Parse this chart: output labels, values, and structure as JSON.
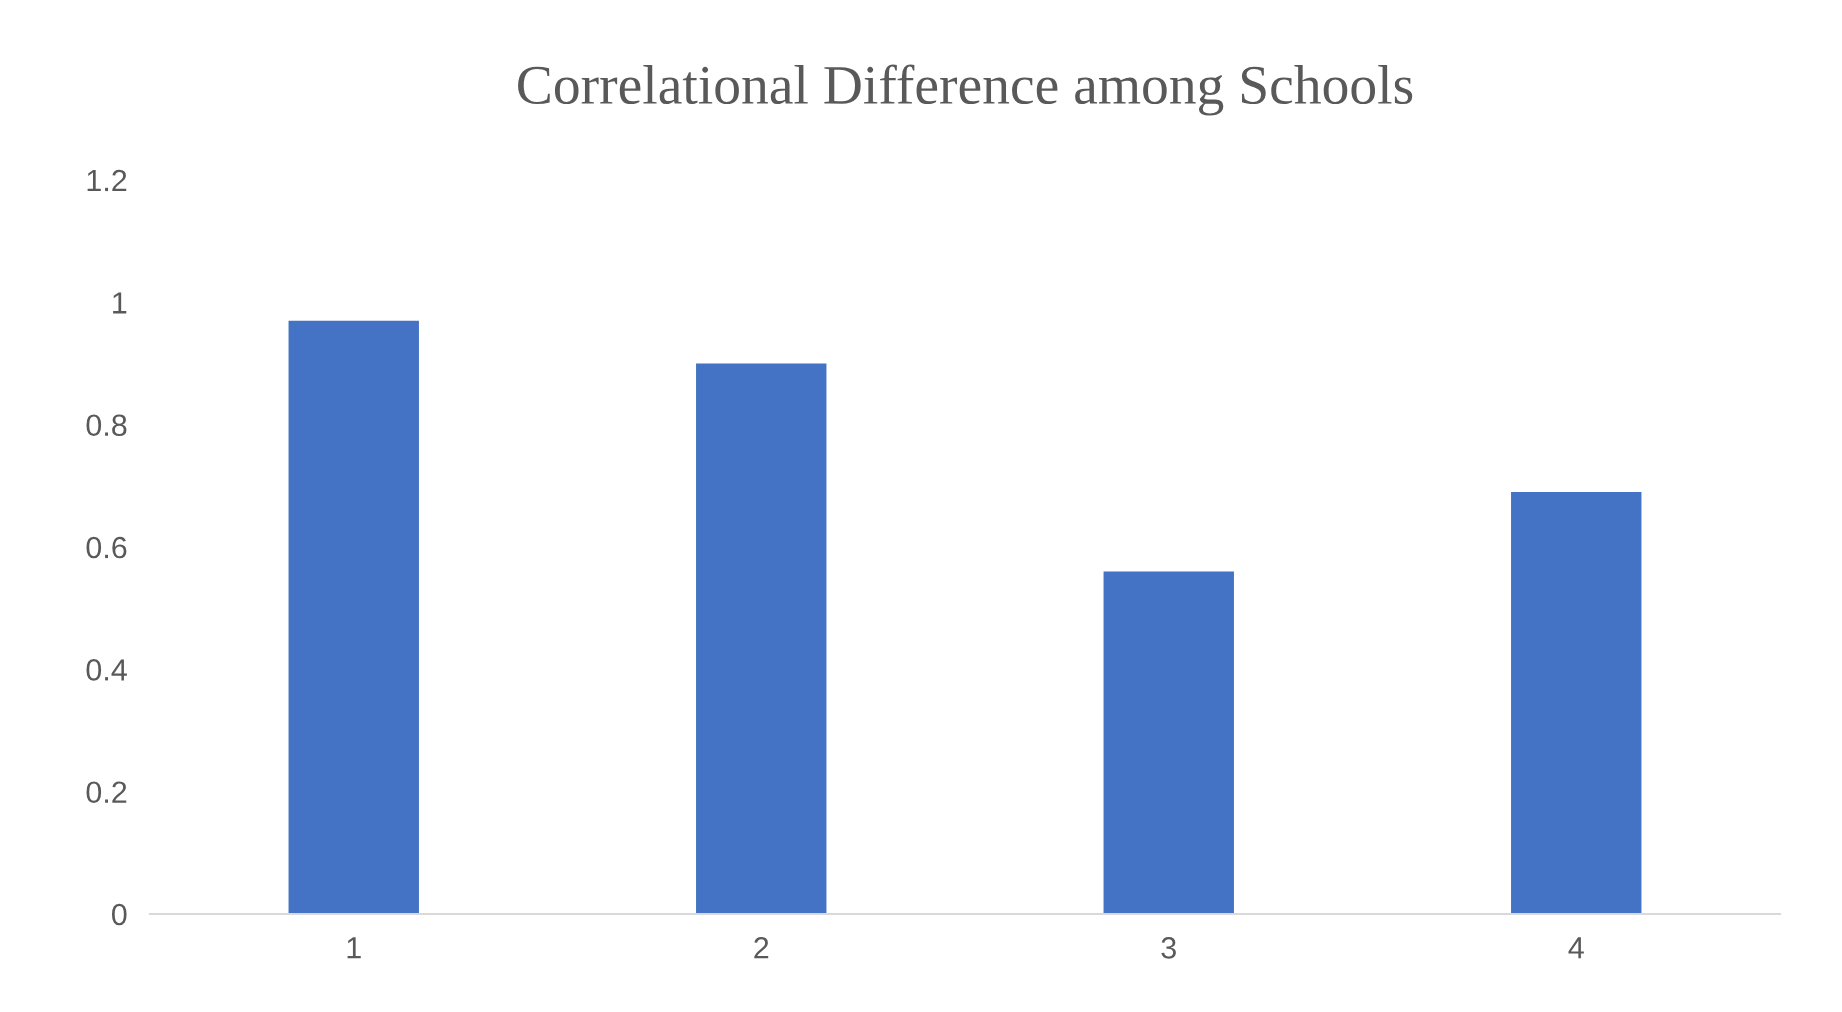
{
  "chart_data": {
    "type": "bar",
    "title": "Correlational Difference among Schools",
    "categories": [
      "1",
      "2",
      "3",
      "4"
    ],
    "values": [
      0.97,
      0.9,
      0.56,
      0.69
    ],
    "color": "#4472c4",
    "ylim": [
      0,
      1.2
    ],
    "yticks": [
      0,
      0.2,
      0.4,
      0.6,
      0.8,
      1,
      1.2
    ],
    "grid": false
  }
}
